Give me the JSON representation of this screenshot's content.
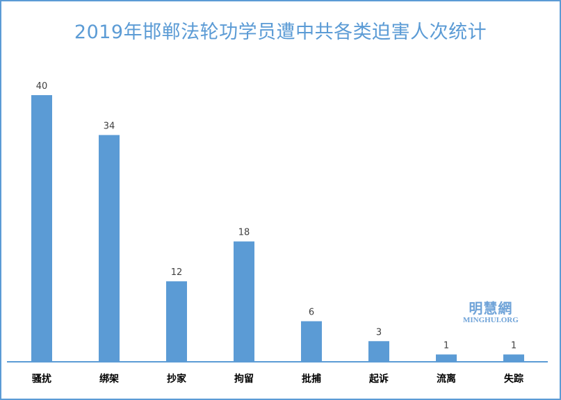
{
  "chart_data": {
    "type": "bar",
    "title": "2019年邯郸法轮功学员遭中共各类迫害人次统计",
    "categories": [
      "骚扰",
      "绑架",
      "抄家",
      "拘留",
      "批捕",
      "起诉",
      "流离",
      "失踪"
    ],
    "values": [
      40,
      34,
      12,
      18,
      6,
      3,
      1,
      1
    ],
    "xlabel": "",
    "ylabel": "",
    "ylim": [
      0,
      40
    ],
    "grid": false,
    "legend": "none",
    "bar_color": "#5b9bd5"
  },
  "watermark": {
    "cn": "明慧網",
    "en": "MINGHUI.ORG"
  }
}
